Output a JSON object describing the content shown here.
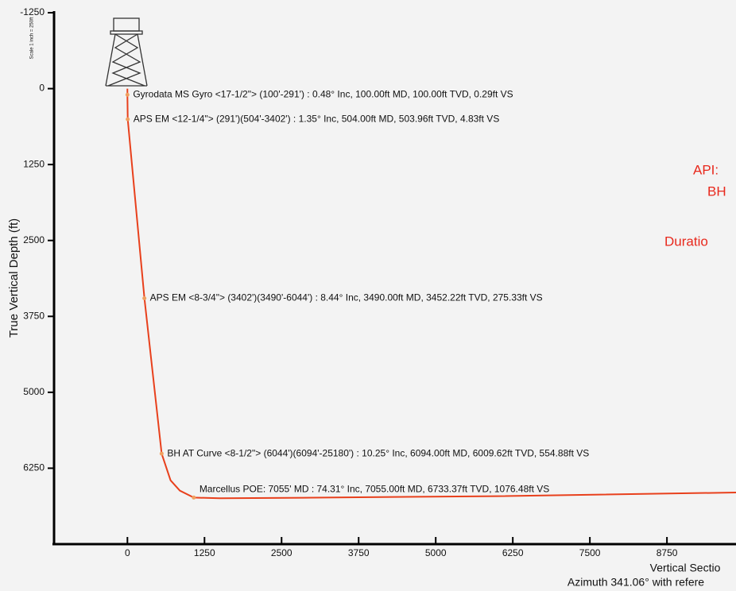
{
  "chart_data": {
    "type": "line",
    "y_axis_label": "True Vertical Depth (ft)",
    "x_axis_label": "Vertical Sectio",
    "x_axis_sublabel": "Azimuth 341.06° with refere",
    "scale_note": "Scale 1 inch = 250ft",
    "side_texts": [
      "API:",
      "BH",
      "Duratio"
    ],
    "annotations": [
      "Gyrodata MS Gyro <17-1/2\"> (100'-291') : 0.48° Inc, 100.00ft MD, 100.00ft TVD, 0.29ft VS",
      "APS EM <12-1/4\"> (291')(504'-3402') : 1.35° Inc, 504.00ft MD, 503.96ft TVD, 4.83ft VS",
      "APS EM <8-3/4\"> (3402')(3490'-6044') : 8.44° Inc, 3490.00ft MD, 3452.22ft TVD, 275.33ft VS",
      "BH AT Curve <8-1/2\"> (6044')(6094'-25180') : 10.25° Inc, 6094.00ft MD, 6009.62ft TVD, 554.88ft VS",
      "Marcellus POE: 7055' MD : 74.31° Inc, 7055.00ft MD, 6733.37ft TVD, 1076.48ft VS"
    ],
    "x": [
      0,
      0.29,
      4.83,
      275.33,
      554.88,
      700,
      850,
      1076.48,
      1500,
      3000,
      6000,
      9870
    ],
    "values": [
      0,
      100,
      504,
      3452,
      6010,
      6450,
      6620,
      6733,
      6745,
      6735,
      6710,
      6650
    ],
    "color": "#e8401c",
    "xlim": [
      -1190,
      9870
    ],
    "ylim": [
      7500,
      -1250
    ],
    "xticks": [
      0,
      1250,
      2500,
      3750,
      5000,
      6250,
      7500,
      8750
    ],
    "yticks": [
      -1250,
      0,
      1250,
      2500,
      3750,
      5000,
      6250
    ],
    "y_inverted": true
  }
}
